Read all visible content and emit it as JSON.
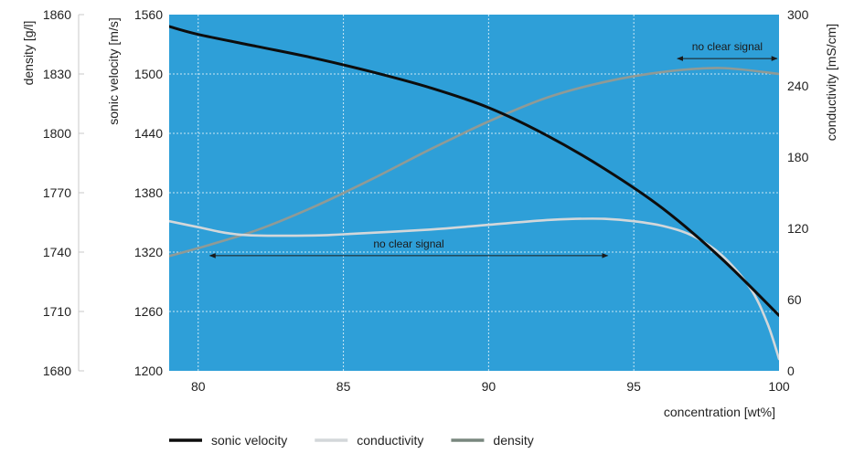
{
  "chart_data": {
    "type": "line",
    "xlabel": "concentration [wt%]",
    "xlim": [
      79,
      100
    ],
    "x_ticks": [
      80,
      85,
      90,
      95,
      100
    ],
    "axes": {
      "density": {
        "label": "density [g/l]",
        "lim": [
          1680,
          1860
        ],
        "ticks": [
          1680,
          1710,
          1740,
          1770,
          1800,
          1830,
          1860
        ]
      },
      "sonic_velocity": {
        "label": "sonic velocity [m/s]",
        "lim": [
          1200,
          1560
        ],
        "ticks": [
          1200,
          1260,
          1320,
          1380,
          1440,
          1500,
          1560
        ]
      },
      "conductivity": {
        "label": "conductivity [mS/cm]",
        "lim": [
          0,
          300
        ],
        "ticks": [
          0,
          60,
          120,
          180,
          240,
          300
        ]
      }
    },
    "grid": true,
    "plot_background": "#2e9fd8",
    "series": [
      {
        "name": "sonic velocity",
        "axis": "sonic_velocity",
        "color": "#0d0d0d",
        "points": [
          [
            79,
            1548
          ],
          [
            80,
            1540
          ],
          [
            82,
            1528
          ],
          [
            84,
            1516
          ],
          [
            86,
            1502
          ],
          [
            88,
            1486
          ],
          [
            90,
            1466
          ],
          [
            92,
            1438
          ],
          [
            94,
            1404
          ],
          [
            96,
            1364
          ],
          [
            98,
            1314
          ],
          [
            100,
            1256
          ]
        ]
      },
      {
        "name": "conductivity",
        "axis": "conductivity",
        "color": "#d3d7da",
        "points": [
          [
            79,
            126
          ],
          [
            80,
            121
          ],
          [
            81,
            116
          ],
          [
            82,
            114
          ],
          [
            84,
            114
          ],
          [
            85,
            115
          ],
          [
            88,
            119
          ],
          [
            90,
            123
          ],
          [
            92,
            127
          ],
          [
            93,
            128
          ],
          [
            94,
            128
          ],
          [
            95,
            126
          ],
          [
            96,
            122
          ],
          [
            97,
            114
          ],
          [
            98,
            98
          ],
          [
            99,
            70
          ],
          [
            99.6,
            40
          ],
          [
            100,
            10
          ]
        ]
      },
      {
        "name": "density",
        "axis": "density",
        "color": "#8f9a96",
        "points": [
          [
            79,
            1738
          ],
          [
            80,
            1742
          ],
          [
            82,
            1751
          ],
          [
            84,
            1763
          ],
          [
            86,
            1777
          ],
          [
            88,
            1792
          ],
          [
            90,
            1806
          ],
          [
            92,
            1818
          ],
          [
            94,
            1826
          ],
          [
            96,
            1831
          ],
          [
            98,
            1833
          ],
          [
            100,
            1830
          ]
        ]
      }
    ],
    "annotations": [
      {
        "text": "no clear signal",
        "from": 80.4,
        "to": 94.1,
        "axis": "conductivity",
        "y": 97
      },
      {
        "text": "no clear signal",
        "from": 96.5,
        "to": 100,
        "axis": "conductivity",
        "y": 263
      }
    ],
    "legend": {
      "placement": "bottom-left",
      "entries": [
        {
          "label": "sonic velocity",
          "color": "#0d0d0d"
        },
        {
          "label": "conductivity",
          "color": "#d3d7da"
        },
        {
          "label": "density",
          "color": "#79877f"
        }
      ]
    }
  }
}
